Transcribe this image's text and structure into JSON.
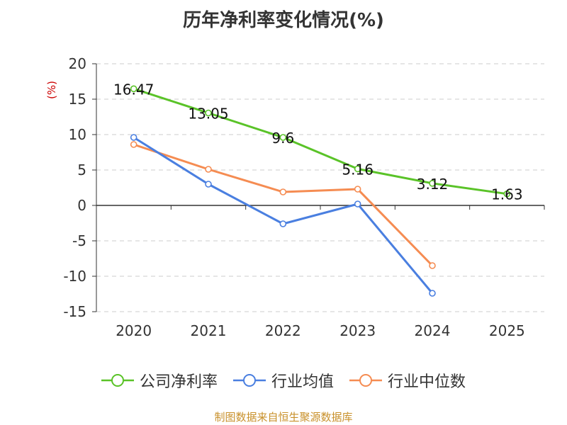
{
  "source_note": "制图数据来自恒生聚源数据库",
  "chart_data": {
    "type": "line",
    "title": "历年净利率变化情况(%)",
    "ylabel": "(%)",
    "xlabel": "",
    "categories": [
      "2020",
      "2021",
      "2022",
      "2023",
      "2024",
      "2025"
    ],
    "ylim": [
      -15,
      20
    ],
    "yticks": [
      "20",
      "15",
      "10",
      "5",
      "0",
      "-5",
      "-10",
      "-15"
    ],
    "grid": true,
    "legend_position": "bottom",
    "series": [
      {
        "name": "公司净利率",
        "color": "#5ac328",
        "values": [
          16.47,
          13.05,
          9.6,
          5.16,
          3.12,
          1.63
        ],
        "labels": [
          "16.47",
          "13.05",
          "9.6",
          "5.16",
          "3.12",
          "1.63"
        ]
      },
      {
        "name": "行业均值",
        "color": "#4a7fe0",
        "values": [
          9.6,
          3.0,
          -2.6,
          0.2,
          -12.4,
          null
        ]
      },
      {
        "name": "行业中位数",
        "color": "#f58c52",
        "values": [
          8.6,
          5.1,
          1.9,
          2.3,
          -8.5,
          null
        ]
      }
    ]
  }
}
